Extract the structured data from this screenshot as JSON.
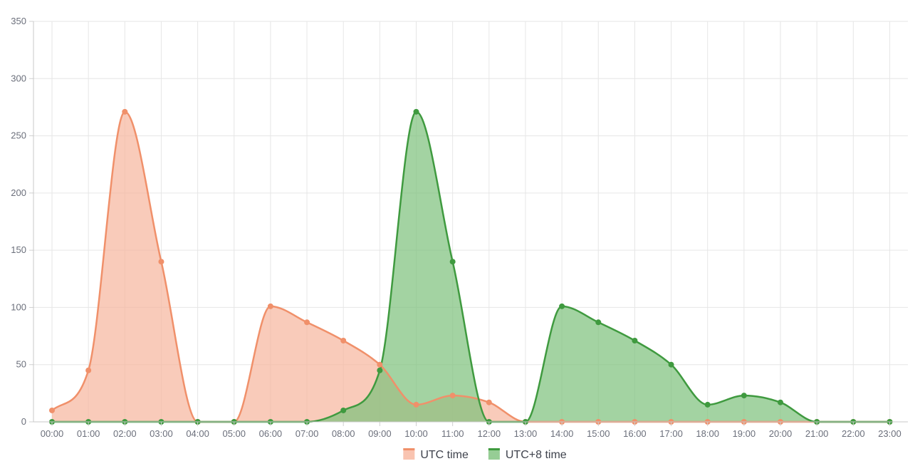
{
  "chart_data": {
    "type": "area",
    "categories": [
      "00:00",
      "01:00",
      "02:00",
      "03:00",
      "04:00",
      "05:00",
      "06:00",
      "07:00",
      "08:00",
      "09:00",
      "10:00",
      "11:00",
      "12:00",
      "13:00",
      "14:00",
      "15:00",
      "16:00",
      "17:00",
      "18:00",
      "19:00",
      "20:00",
      "21:00",
      "22:00",
      "23:00"
    ],
    "ylim": [
      0,
      350
    ],
    "yticks": [
      0,
      50,
      100,
      150,
      200,
      250,
      300,
      350
    ],
    "grid": true,
    "legend_position": "bottom-center",
    "series": [
      {
        "name": "UTC time",
        "color": "#f0906a",
        "fill": "#f7b59d",
        "values": [
          10,
          45,
          271,
          140,
          0,
          0,
          101,
          87,
          71,
          50,
          15,
          23,
          17,
          0,
          0,
          0,
          0,
          0,
          0,
          0,
          0,
          0,
          0,
          0
        ]
      },
      {
        "name": "UTC+8 time",
        "color": "#3f9a3f",
        "fill": "#7cc07a",
        "values": [
          0,
          0,
          0,
          0,
          0,
          0,
          0,
          0,
          10,
          45,
          271,
          140,
          0,
          0,
          101,
          87,
          71,
          50,
          15,
          23,
          17,
          0,
          0,
          0
        ]
      }
    ]
  }
}
